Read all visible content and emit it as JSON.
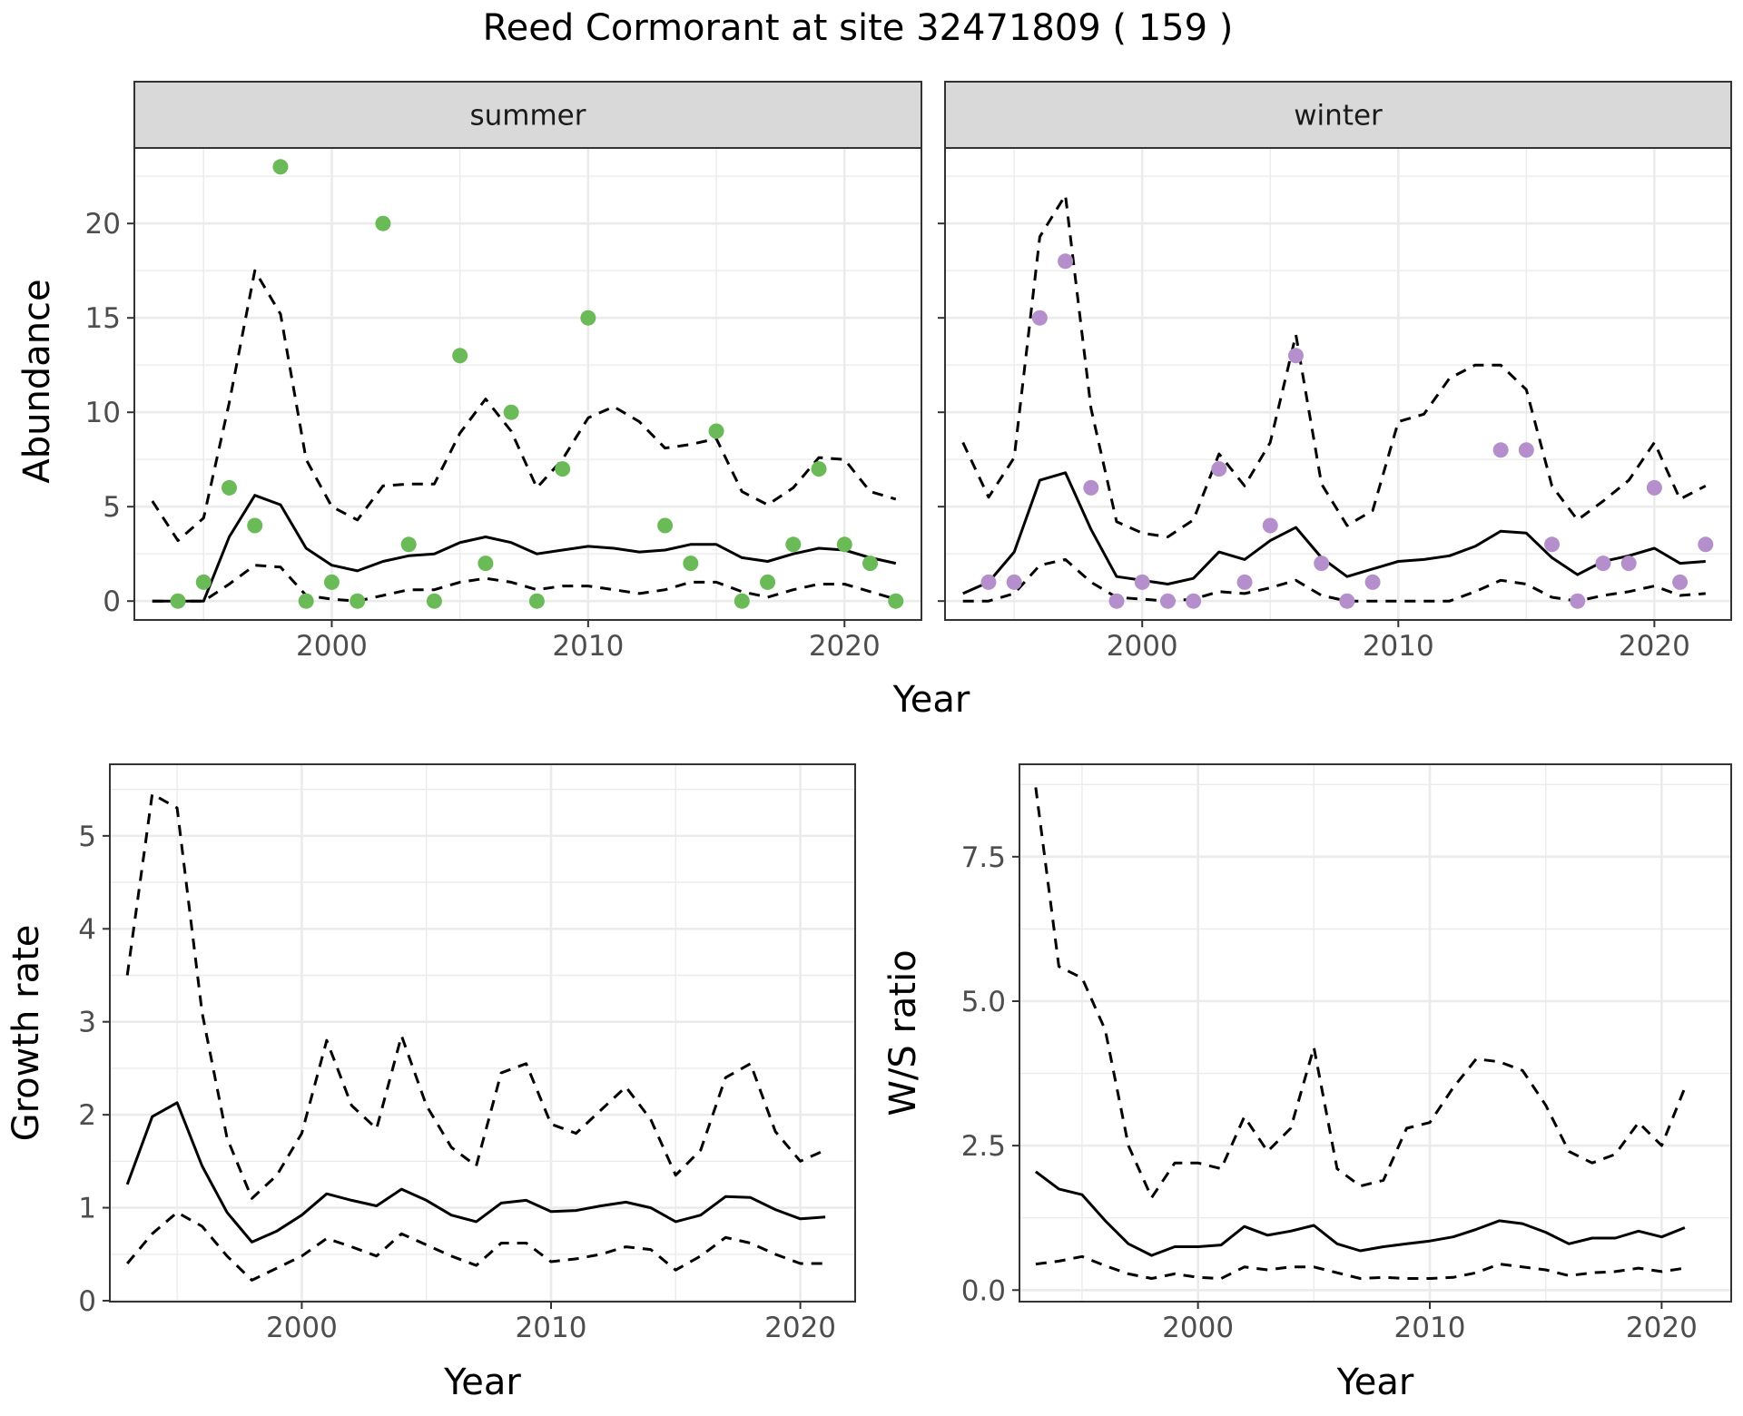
{
  "title": "Reed Cormorant at site 32471809 ( 159 )",
  "colors": {
    "summer_points": "#6aba58",
    "winter_points": "#b48fcc",
    "strip_fill": "#d9d9d9",
    "grid": "#ebebeb",
    "line": "#000000"
  },
  "chart_data": [
    {
      "type": "line",
      "panel": "summer",
      "strip_label": "summer",
      "xlabel": "Year",
      "ylabel": "Abundance",
      "xlim": [
        1992.3,
        2023.0
      ],
      "ylim": [
        -1.0,
        24.0
      ],
      "x_ticks": [
        2000,
        2010,
        2020
      ],
      "y_ticks": [
        0,
        5,
        10,
        15,
        20
      ],
      "grid": true,
      "x": [
        1993,
        1994,
        1995,
        1996,
        1997,
        1998,
        1999,
        2000,
        2001,
        2002,
        2003,
        2004,
        2005,
        2006,
        2007,
        2008,
        2009,
        2010,
        2011,
        2012,
        2013,
        2014,
        2015,
        2016,
        2017,
        2018,
        2019,
        2020,
        2021,
        2022
      ],
      "series": [
        {
          "role": "estimate",
          "style": "solid",
          "values": [
            0,
            0,
            0,
            3.4,
            5.6,
            5.1,
            2.8,
            1.9,
            1.6,
            2.1,
            2.4,
            2.5,
            3.1,
            3.4,
            3.1,
            2.5,
            2.7,
            2.9,
            2.8,
            2.6,
            2.7,
            3.0,
            3.0,
            2.3,
            2.1,
            2.5,
            2.8,
            2.7,
            2.3,
            2.0
          ]
        },
        {
          "role": "upper",
          "style": "dashed",
          "values": [
            5.3,
            3.2,
            4.4,
            10.5,
            17.5,
            15.2,
            7.5,
            5.0,
            4.3,
            6.1,
            6.2,
            6.2,
            8.9,
            10.7,
            9.0,
            6.0,
            7.5,
            9.7,
            10.3,
            9.5,
            8.1,
            8.3,
            8.6,
            5.8,
            5.1,
            6.0,
            7.6,
            7.5,
            5.8,
            5.4
          ]
        },
        {
          "role": "lower",
          "style": "dashed",
          "values": [
            0,
            0,
            0,
            0.9,
            1.9,
            1.8,
            0.3,
            0.1,
            0,
            0.3,
            0.6,
            0.6,
            1.0,
            1.2,
            1.0,
            0.6,
            0.8,
            0.8,
            0.6,
            0.4,
            0.6,
            1.0,
            1.0,
            0.5,
            0.2,
            0.6,
            0.9,
            0.9,
            0.5,
            0.1
          ]
        }
      ],
      "points": {
        "x": [
          1994,
          1995,
          1996,
          1997,
          1998,
          1999,
          2000,
          2001,
          2002,
          2003,
          2004,
          2005,
          2006,
          2007,
          2008,
          2009,
          2010,
          2013,
          2014,
          2015,
          2016,
          2017,
          2018,
          2019,
          2020,
          2021,
          2022
        ],
        "y": [
          0,
          1,
          6,
          4,
          23,
          0,
          1,
          0,
          20,
          3,
          0,
          13,
          2,
          10,
          0,
          7,
          15,
          4,
          2,
          9,
          0,
          1,
          3,
          7,
          3,
          2,
          0
        ]
      }
    },
    {
      "type": "line",
      "panel": "winter",
      "strip_label": "winter",
      "xlabel": "Year",
      "ylabel": "Abundance",
      "xlim": [
        1992.3,
        2023.0
      ],
      "ylim": [
        -1.0,
        24.0
      ],
      "x_ticks": [
        2000,
        2010,
        2020
      ],
      "y_ticks": [
        0,
        5,
        10,
        15,
        20
      ],
      "grid": true,
      "x": [
        1993,
        1994,
        1995,
        1996,
        1997,
        1998,
        1999,
        2000,
        2001,
        2002,
        2003,
        2004,
        2005,
        2006,
        2007,
        2008,
        2009,
        2010,
        2011,
        2012,
        2013,
        2014,
        2015,
        2016,
        2017,
        2018,
        2019,
        2020,
        2021,
        2022
      ],
      "series": [
        {
          "role": "estimate",
          "style": "solid",
          "values": [
            0.4,
            1.0,
            2.6,
            6.4,
            6.8,
            3.8,
            1.3,
            1.1,
            0.9,
            1.2,
            2.6,
            2.2,
            3.2,
            3.9,
            2.3,
            1.3,
            1.7,
            2.1,
            2.2,
            2.4,
            2.9,
            3.7,
            3.6,
            2.3,
            1.4,
            2.1,
            2.4,
            2.8,
            2.0,
            2.1
          ]
        },
        {
          "role": "upper",
          "style": "dashed",
          "values": [
            8.4,
            5.5,
            7.6,
            19.3,
            21.5,
            10.2,
            4.2,
            3.6,
            3.4,
            4.3,
            7.8,
            6.1,
            8.4,
            14.1,
            6.2,
            4.0,
            4.8,
            9.5,
            9.9,
            11.8,
            12.5,
            12.5,
            11.2,
            6.1,
            4.3,
            5.3,
            6.4,
            8.4,
            5.4,
            6.1
          ]
        },
        {
          "role": "lower",
          "style": "dashed",
          "values": [
            0,
            0,
            0.4,
            1.9,
            2.2,
            1.0,
            0.2,
            0.1,
            0,
            0.1,
            0.5,
            0.4,
            0.7,
            1.1,
            0.3,
            0,
            0,
            0,
            0,
            0,
            0.5,
            1.1,
            0.9,
            0.2,
            0,
            0.3,
            0.5,
            0.8,
            0.3,
            0.4
          ]
        }
      ],
      "points": {
        "x": [
          1994,
          1995,
          1996,
          1997,
          1998,
          1999,
          2000,
          2001,
          2002,
          2003,
          2004,
          2005,
          2006,
          2007,
          2008,
          2009,
          2014,
          2015,
          2016,
          2017,
          2018,
          2019,
          2020,
          2021,
          2022
        ],
        "y": [
          1,
          1,
          15,
          18,
          6,
          0,
          1,
          0,
          0,
          7,
          1,
          4,
          13,
          2,
          0,
          1,
          8,
          8,
          3,
          0,
          2,
          2,
          6,
          1,
          3
        ]
      }
    },
    {
      "type": "line",
      "panel": "growth",
      "xlabel": "Year",
      "ylabel": "Growth rate",
      "xlim": [
        1992.3,
        2022.2
      ],
      "ylim": [
        -0.01,
        5.77
      ],
      "x_ticks": [
        2000,
        2010,
        2020
      ],
      "y_ticks": [
        0,
        1,
        2,
        3,
        4,
        5
      ],
      "grid": true,
      "x": [
        1993,
        1994,
        1995,
        1996,
        1997,
        1998,
        1999,
        2000,
        2001,
        2002,
        2003,
        2004,
        2005,
        2006,
        2007,
        2008,
        2009,
        2010,
        2011,
        2012,
        2013,
        2014,
        2015,
        2016,
        2017,
        2018,
        2019,
        2020,
        2021
      ],
      "series": [
        {
          "role": "estimate",
          "style": "solid",
          "values": [
            1.25,
            1.98,
            2.13,
            1.45,
            0.95,
            0.63,
            0.75,
            0.92,
            1.15,
            1.08,
            1.02,
            1.2,
            1.08,
            0.92,
            0.85,
            1.05,
            1.08,
            0.96,
            0.97,
            1.02,
            1.06,
            1.0,
            0.85,
            0.92,
            1.12,
            1.11,
            0.98,
            0.88,
            0.9
          ]
        },
        {
          "role": "upper",
          "style": "dashed",
          "values": [
            3.5,
            5.45,
            5.3,
            3.1,
            1.75,
            1.1,
            1.35,
            1.8,
            2.8,
            2.1,
            1.85,
            2.85,
            2.1,
            1.65,
            1.45,
            2.45,
            2.55,
            1.9,
            1.8,
            2.05,
            2.3,
            1.95,
            1.35,
            1.62,
            2.4,
            2.55,
            1.82,
            1.5,
            1.62
          ]
        },
        {
          "role": "lower",
          "style": "dashed",
          "values": [
            0.4,
            0.72,
            0.95,
            0.8,
            0.48,
            0.22,
            0.35,
            0.48,
            0.67,
            0.58,
            0.48,
            0.72,
            0.6,
            0.48,
            0.38,
            0.62,
            0.62,
            0.42,
            0.45,
            0.5,
            0.58,
            0.55,
            0.33,
            0.48,
            0.68,
            0.62,
            0.5,
            0.4,
            0.4
          ]
        }
      ]
    },
    {
      "type": "line",
      "panel": "ws_ratio",
      "xlabel": "Year",
      "ylabel": "W/S ratio",
      "xlim": [
        1992.3,
        2023.0
      ],
      "ylim": [
        -0.2,
        9.1
      ],
      "x_ticks": [
        2000,
        2010,
        2020
      ],
      "y_ticks": [
        0.0,
        2.5,
        5.0,
        7.5
      ],
      "y_tick_labels": [
        "0.0",
        "2.5",
        "5.0",
        "7.5"
      ],
      "grid": true,
      "x": [
        1993,
        1994,
        1995,
        1996,
        1997,
        1998,
        1999,
        2000,
        2001,
        2002,
        2003,
        2004,
        2005,
        2006,
        2007,
        2008,
        2009,
        2010,
        2011,
        2012,
        2013,
        2014,
        2015,
        2016,
        2017,
        2018,
        2019,
        2020,
        2021
      ],
      "series": [
        {
          "role": "estimate",
          "style": "solid",
          "values": [
            2.05,
            1.75,
            1.65,
            1.2,
            0.8,
            0.6,
            0.75,
            0.75,
            0.78,
            1.1,
            0.95,
            1.02,
            1.12,
            0.8,
            0.68,
            0.75,
            0.8,
            0.85,
            0.92,
            1.05,
            1.2,
            1.15,
            1.0,
            0.8,
            0.9,
            0.9,
            1.02,
            0.92,
            1.08
          ]
        },
        {
          "role": "upper",
          "style": "dashed",
          "values": [
            8.7,
            5.6,
            5.4,
            4.5,
            2.5,
            1.6,
            2.2,
            2.2,
            2.1,
            3.0,
            2.4,
            2.8,
            4.2,
            2.1,
            1.8,
            1.9,
            2.8,
            2.9,
            3.5,
            4.0,
            3.95,
            3.8,
            3.2,
            2.4,
            2.2,
            2.35,
            2.9,
            2.5,
            3.5
          ]
        },
        {
          "role": "lower",
          "style": "dashed",
          "values": [
            0.45,
            0.5,
            0.58,
            0.42,
            0.28,
            0.2,
            0.28,
            0.22,
            0.2,
            0.4,
            0.35,
            0.4,
            0.4,
            0.3,
            0.2,
            0.22,
            0.2,
            0.2,
            0.22,
            0.3,
            0.45,
            0.4,
            0.35,
            0.25,
            0.3,
            0.32,
            0.38,
            0.32,
            0.38
          ]
        }
      ]
    }
  ]
}
